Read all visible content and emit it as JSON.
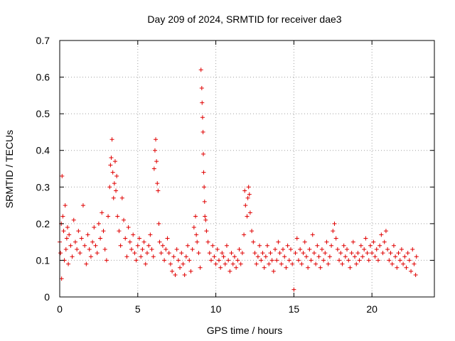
{
  "chart_data": {
    "type": "scatter",
    "title": "Day 209 of 2024, SRMTID for receiver dae3",
    "xlabel": "GPS time / hours",
    "ylabel": "SRMTID / TECUs",
    "xlim": [
      0,
      24
    ],
    "ylim": [
      0,
      0.7
    ],
    "xticks": [
      0,
      5,
      10,
      15,
      20
    ],
    "yticks": [
      0,
      0.1,
      0.2,
      0.3,
      0.4,
      0.5,
      0.6,
      0.7
    ],
    "xtick_labels": [
      "0",
      "5",
      "10",
      "15",
      "20"
    ],
    "ytick_labels": [
      "0",
      "0.1",
      "0.2",
      "0.3",
      "0.4",
      "0.5",
      "0.6",
      "0.7"
    ],
    "grid": true,
    "marker": "+",
    "series": [
      {
        "name": "SRMTID",
        "color": "#e00000",
        "points": [
          [
            0.0,
            0.15
          ],
          [
            0.05,
            0.12
          ],
          [
            0.1,
            0.2
          ],
          [
            0.12,
            0.05
          ],
          [
            0.15,
            0.33
          ],
          [
            0.2,
            0.22
          ],
          [
            0.25,
            0.18
          ],
          [
            0.3,
            0.1
          ],
          [
            0.35,
            0.25
          ],
          [
            0.4,
            0.13
          ],
          [
            0.45,
            0.16
          ],
          [
            0.5,
            0.19
          ],
          [
            0.55,
            0.09
          ],
          [
            0.6,
            0.17
          ],
          [
            0.7,
            0.14
          ],
          [
            0.8,
            0.11
          ],
          [
            0.9,
            0.21
          ],
          [
            1.0,
            0.15
          ],
          [
            1.1,
            0.13
          ],
          [
            1.2,
            0.18
          ],
          [
            1.3,
            0.12
          ],
          [
            1.4,
            0.16
          ],
          [
            1.5,
            0.25
          ],
          [
            1.6,
            0.14
          ],
          [
            1.7,
            0.09
          ],
          [
            1.8,
            0.17
          ],
          [
            1.9,
            0.13
          ],
          [
            2.0,
            0.11
          ],
          [
            2.1,
            0.15
          ],
          [
            2.2,
            0.19
          ],
          [
            2.3,
            0.14
          ],
          [
            2.4,
            0.12
          ],
          [
            2.5,
            0.2
          ],
          [
            2.6,
            0.16
          ],
          [
            2.7,
            0.23
          ],
          [
            2.8,
            0.18
          ],
          [
            2.9,
            0.13
          ],
          [
            3.0,
            0.1
          ],
          [
            3.1,
            0.22
          ],
          [
            3.2,
            0.3
          ],
          [
            3.25,
            0.36
          ],
          [
            3.3,
            0.38
          ],
          [
            3.35,
            0.43
          ],
          [
            3.4,
            0.34
          ],
          [
            3.45,
            0.27
          ],
          [
            3.5,
            0.31
          ],
          [
            3.55,
            0.37
          ],
          [
            3.6,
            0.29
          ],
          [
            3.65,
            0.33
          ],
          [
            3.7,
            0.22
          ],
          [
            3.8,
            0.18
          ],
          [
            3.9,
            0.14
          ],
          [
            4.0,
            0.27
          ],
          [
            4.1,
            0.21
          ],
          [
            4.2,
            0.16
          ],
          [
            4.3,
            0.11
          ],
          [
            4.4,
            0.19
          ],
          [
            4.5,
            0.15
          ],
          [
            4.6,
            0.13
          ],
          [
            4.7,
            0.17
          ],
          [
            4.8,
            0.12
          ],
          [
            4.9,
            0.1
          ],
          [
            5.0,
            0.14
          ],
          [
            5.1,
            0.16
          ],
          [
            5.2,
            0.11
          ],
          [
            5.3,
            0.13
          ],
          [
            5.4,
            0.15
          ],
          [
            5.5,
            0.09
          ],
          [
            5.6,
            0.12
          ],
          [
            5.7,
            0.14
          ],
          [
            5.8,
            0.17
          ],
          [
            5.9,
            0.13
          ],
          [
            6.0,
            0.11
          ],
          [
            6.05,
            0.35
          ],
          [
            6.1,
            0.4
          ],
          [
            6.15,
            0.43
          ],
          [
            6.2,
            0.37
          ],
          [
            6.25,
            0.31
          ],
          [
            6.3,
            0.29
          ],
          [
            6.35,
            0.2
          ],
          [
            6.4,
            0.15
          ],
          [
            6.5,
            0.12
          ],
          [
            6.6,
            0.14
          ],
          [
            6.7,
            0.1
          ],
          [
            6.8,
            0.13
          ],
          [
            6.9,
            0.16
          ],
          [
            7.0,
            0.12
          ],
          [
            7.1,
            0.09
          ],
          [
            7.2,
            0.07
          ],
          [
            7.3,
            0.11
          ],
          [
            7.4,
            0.06
          ],
          [
            7.5,
            0.13
          ],
          [
            7.6,
            0.1
          ],
          [
            7.7,
            0.08
          ],
          [
            7.8,
            0.12
          ],
          [
            7.9,
            0.09
          ],
          [
            8.0,
            0.06
          ],
          [
            8.1,
            0.11
          ],
          [
            8.2,
            0.14
          ],
          [
            8.3,
            0.1
          ],
          [
            8.4,
            0.07
          ],
          [
            8.5,
            0.13
          ],
          [
            8.6,
            0.19
          ],
          [
            8.7,
            0.22
          ],
          [
            8.75,
            0.17
          ],
          [
            8.8,
            0.15
          ],
          [
            8.9,
            0.12
          ],
          [
            9.0,
            0.08
          ],
          [
            9.05,
            0.62
          ],
          [
            9.1,
            0.57
          ],
          [
            9.12,
            0.53
          ],
          [
            9.15,
            0.49
          ],
          [
            9.18,
            0.45
          ],
          [
            9.2,
            0.39
          ],
          [
            9.22,
            0.34
          ],
          [
            9.25,
            0.3
          ],
          [
            9.28,
            0.26
          ],
          [
            9.3,
            0.22
          ],
          [
            9.35,
            0.21
          ],
          [
            9.4,
            0.18
          ],
          [
            9.5,
            0.15
          ],
          [
            9.6,
            0.12
          ],
          [
            9.7,
            0.1
          ],
          [
            9.8,
            0.14
          ],
          [
            9.9,
            0.11
          ],
          [
            10.0,
            0.09
          ],
          [
            10.1,
            0.13
          ],
          [
            10.2,
            0.1
          ],
          [
            10.3,
            0.08
          ],
          [
            10.4,
            0.12
          ],
          [
            10.5,
            0.11
          ],
          [
            10.6,
            0.09
          ],
          [
            10.7,
            0.14
          ],
          [
            10.8,
            0.1
          ],
          [
            10.9,
            0.07
          ],
          [
            11.0,
            0.12
          ],
          [
            11.1,
            0.09
          ],
          [
            11.2,
            0.11
          ],
          [
            11.3,
            0.08
          ],
          [
            11.4,
            0.1
          ],
          [
            11.5,
            0.13
          ],
          [
            11.6,
            0.09
          ],
          [
            11.7,
            0.12
          ],
          [
            11.8,
            0.17
          ],
          [
            11.85,
            0.29
          ],
          [
            11.9,
            0.25
          ],
          [
            12.0,
            0.22
          ],
          [
            12.05,
            0.27
          ],
          [
            12.1,
            0.3
          ],
          [
            12.15,
            0.28
          ],
          [
            12.2,
            0.23
          ],
          [
            12.3,
            0.18
          ],
          [
            12.4,
            0.15
          ],
          [
            12.5,
            0.12
          ],
          [
            12.6,
            0.09
          ],
          [
            12.7,
            0.11
          ],
          [
            12.8,
            0.14
          ],
          [
            12.9,
            0.1
          ],
          [
            13.0,
            0.12
          ],
          [
            13.1,
            0.08
          ],
          [
            13.2,
            0.11
          ],
          [
            13.3,
            0.14
          ],
          [
            13.4,
            0.09
          ],
          [
            13.5,
            0.12
          ],
          [
            13.6,
            0.1
          ],
          [
            13.7,
            0.07
          ],
          [
            13.8,
            0.13
          ],
          [
            13.9,
            0.1
          ],
          [
            14.0,
            0.15
          ],
          [
            14.1,
            0.12
          ],
          [
            14.2,
            0.09
          ],
          [
            14.3,
            0.13
          ],
          [
            14.4,
            0.11
          ],
          [
            14.5,
            0.08
          ],
          [
            14.6,
            0.14
          ],
          [
            14.7,
            0.1
          ],
          [
            14.8,
            0.13
          ],
          [
            14.9,
            0.09
          ],
          [
            15.0,
            0.02
          ],
          [
            15.1,
            0.12
          ],
          [
            15.2,
            0.16
          ],
          [
            15.3,
            0.1
          ],
          [
            15.4,
            0.13
          ],
          [
            15.5,
            0.09
          ],
          [
            15.6,
            0.12
          ],
          [
            15.7,
            0.15
          ],
          [
            15.8,
            0.11
          ],
          [
            15.9,
            0.08
          ],
          [
            16.0,
            0.13
          ],
          [
            16.1,
            0.1
          ],
          [
            16.2,
            0.17
          ],
          [
            16.3,
            0.12
          ],
          [
            16.4,
            0.09
          ],
          [
            16.5,
            0.14
          ],
          [
            16.6,
            0.11
          ],
          [
            16.7,
            0.08
          ],
          [
            16.8,
            0.13
          ],
          [
            16.9,
            0.1
          ],
          [
            17.0,
            0.12
          ],
          [
            17.1,
            0.15
          ],
          [
            17.2,
            0.09
          ],
          [
            17.3,
            0.11
          ],
          [
            17.4,
            0.14
          ],
          [
            17.5,
            0.18
          ],
          [
            17.6,
            0.2
          ],
          [
            17.7,
            0.16
          ],
          [
            17.8,
            0.13
          ],
          [
            17.9,
            0.1
          ],
          [
            18.0,
            0.12
          ],
          [
            18.1,
            0.09
          ],
          [
            18.2,
            0.14
          ],
          [
            18.3,
            0.11
          ],
          [
            18.4,
            0.13
          ],
          [
            18.5,
            0.1
          ],
          [
            18.6,
            0.08
          ],
          [
            18.7,
            0.12
          ],
          [
            18.8,
            0.15
          ],
          [
            18.9,
            0.11
          ],
          [
            19.0,
            0.09
          ],
          [
            19.1,
            0.12
          ],
          [
            19.2,
            0.1
          ],
          [
            19.3,
            0.14
          ],
          [
            19.4,
            0.11
          ],
          [
            19.5,
            0.13
          ],
          [
            19.6,
            0.16
          ],
          [
            19.7,
            0.12
          ],
          [
            19.8,
            0.1
          ],
          [
            19.9,
            0.14
          ],
          [
            20.0,
            0.12
          ],
          [
            20.1,
            0.15
          ],
          [
            20.2,
            0.11
          ],
          [
            20.3,
            0.13
          ],
          [
            20.4,
            0.1
          ],
          [
            20.5,
            0.14
          ],
          [
            20.6,
            0.17
          ],
          [
            20.7,
            0.12
          ],
          [
            20.8,
            0.15
          ],
          [
            20.9,
            0.18
          ],
          [
            21.0,
            0.13
          ],
          [
            21.1,
            0.1
          ],
          [
            21.2,
            0.12
          ],
          [
            21.3,
            0.09
          ],
          [
            21.4,
            0.14
          ],
          [
            21.5,
            0.11
          ],
          [
            21.6,
            0.08
          ],
          [
            21.7,
            0.12
          ],
          [
            21.8,
            0.1
          ],
          [
            21.9,
            0.13
          ],
          [
            22.0,
            0.09
          ],
          [
            22.1,
            0.11
          ],
          [
            22.2,
            0.08
          ],
          [
            22.3,
            0.12
          ],
          [
            22.4,
            0.1
          ],
          [
            22.5,
            0.07
          ],
          [
            22.6,
            0.13
          ],
          [
            22.7,
            0.09
          ],
          [
            22.8,
            0.06
          ],
          [
            22.85,
            0.11
          ]
        ]
      }
    ]
  }
}
